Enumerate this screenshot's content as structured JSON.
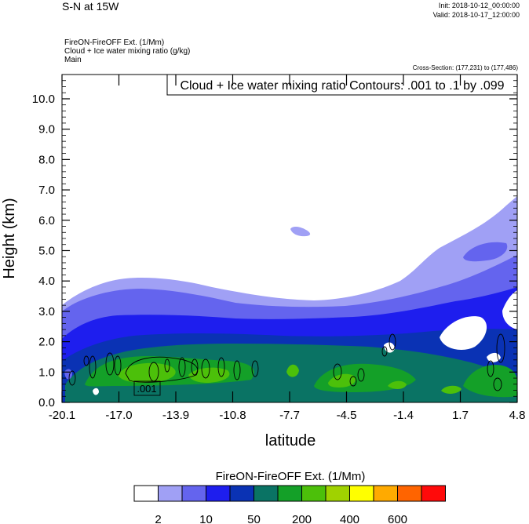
{
  "header": {
    "title": "S-N at 15W",
    "init": "Init: 2018-10-12_00:00:00",
    "valid": "Valid: 2018-10-17_12:00:00",
    "field1": "FireON-FireOFF Ext.   (1/Mm)",
    "field2": "Cloud + Ice water mixing ratio   (g/kg)",
    "field3": "Main",
    "cross_section": "Cross-Section: (177,231) to (177,486)"
  },
  "chart_data": {
    "type": "heatmap",
    "title": "S-N at 15W",
    "xlabel": "latitude",
    "ylabel": "Height (km)",
    "xlim": [
      -20.1,
      4.8
    ],
    "ylim": [
      0.0,
      10.8
    ],
    "x_ticks": [
      "-20.1",
      "-17.0",
      "-13.9",
      "-10.8",
      "-7.7",
      "-4.5",
      "-1.4",
      "1.7",
      "4.8"
    ],
    "y_ticks": [
      "0.0",
      "1.0",
      "2.0",
      "3.0",
      "4.0",
      "5.0",
      "6.0",
      "7.0",
      "8.0",
      "9.0",
      "10.0"
    ],
    "contour_label": "Cloud + Ice water mixing ratio Contours: .001 to .1 by .099",
    "contour_inline_label": ".001",
    "colorbar": {
      "title": "FireON-FireOFF Ext.  (1/Mm)",
      "labels": [
        "2",
        "10",
        "50",
        "200",
        "400",
        "600"
      ],
      "colors": [
        "#ffffff",
        "#a0a0f5",
        "#6464ee",
        "#1e1eee",
        "#0a32b4",
        "#0a7364",
        "#14a028",
        "#4cc00a",
        "#a0d200",
        "#ffff00",
        "#ffaa00",
        "#ff6400",
        "#ff0a0a"
      ]
    }
  }
}
